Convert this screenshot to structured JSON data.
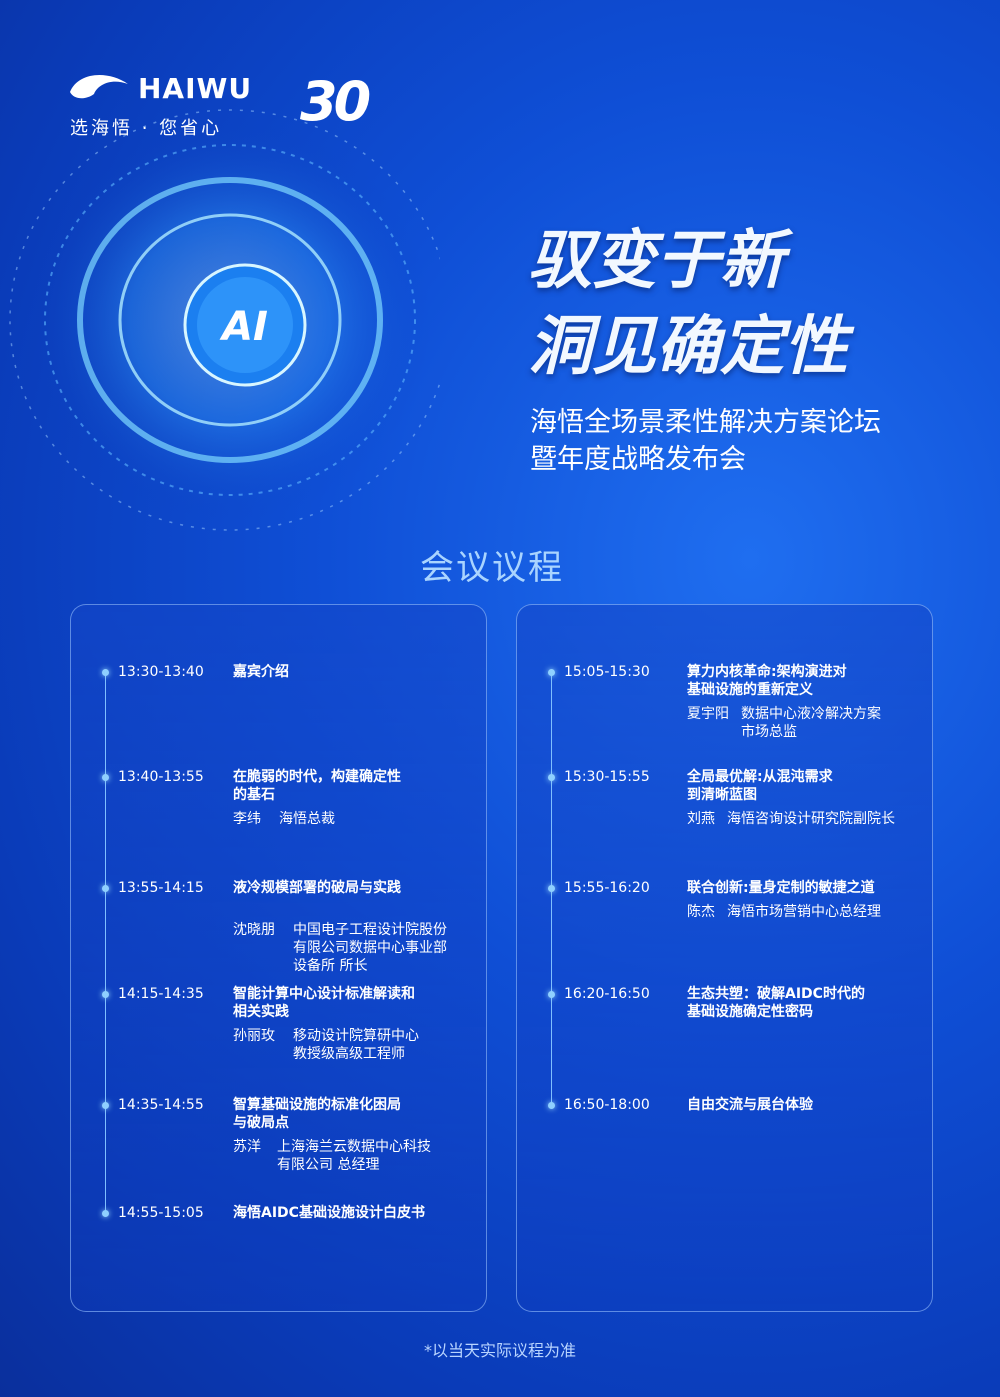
{
  "header": {
    "brand": "HAIWU",
    "slogan": "选海悟 · 您省心",
    "anniversary": "30"
  },
  "hero": {
    "badge": "AI",
    "title_lines": [
      "驭变于新",
      "洞见确定性"
    ],
    "subtitle_lines": [
      "海悟全场景柔性解决方案论坛",
      "暨年度战略发布会"
    ]
  },
  "agenda": {
    "title": "会议议程",
    "columns": [
      {
        "items": [
          {
            "time": "13:30-13:40",
            "title": [
              "嘉宾介绍"
            ]
          },
          {
            "time": "13:40-13:55",
            "title": [
              "在脆弱的时代，构建确定性",
              "的基石"
            ],
            "speaker": {
              "name": "李纬",
              "role": [
                "海悟总裁"
              ]
            }
          },
          {
            "time": "13:55-14:15",
            "title": [
              "液冷规模部署的破局与实践"
            ],
            "speaker": {
              "name": "沈晓朋",
              "role": [
                "中国电子工程设计院股份",
                "有限公司数据中心事业部",
                "设备所 所长"
              ]
            }
          },
          {
            "time": "14:15-14:35",
            "title": [
              "智能计算中心设计标准解读和",
              "相关实践"
            ],
            "speaker": {
              "name": "孙丽玫",
              "role": [
                "移动设计院算研中心",
                "教授级高级工程师"
              ]
            }
          },
          {
            "time": "14:35-14:55",
            "title": [
              "智算基础设施的标准化困局",
              "与破局点"
            ],
            "speaker": {
              "name": "苏洋",
              "role": [
                "上海海兰云数据中心科技",
                "有限公司 总经理"
              ]
            }
          },
          {
            "time": "14:55-15:05",
            "title": [
              "海悟AIDC基础设施设计白皮书"
            ]
          }
        ]
      },
      {
        "items": [
          {
            "time": "15:05-15:30",
            "title": [
              "算力内核革命:架构演进对",
              "基础设施的重新定义"
            ],
            "speaker": {
              "name": "夏宇阳",
              "role": [
                "数据中心液冷解决方案",
                "市场总监"
              ]
            }
          },
          {
            "time": "15:30-15:55",
            "title": [
              "全局最优解:从混沌需求",
              "到清晰蓝图"
            ],
            "speaker": {
              "name": "刘燕",
              "role": [
                "海悟咨询设计研究院副院长"
              ]
            }
          },
          {
            "time": "15:55-16:20",
            "title": [
              "联合创新:量身定制的敏捷之道"
            ],
            "speaker": {
              "name": "陈杰",
              "role": [
                "海悟市场营销中心总经理"
              ]
            }
          },
          {
            "time": "16:20-16:50",
            "title": [
              "生态共塑：破解AIDC时代的",
              "基础设施确定性密码"
            ]
          },
          {
            "time": "16:50-18:00",
            "title": [
              "自由交流与展台体验"
            ]
          }
        ]
      }
    ]
  },
  "footnote": "*以当天实际议程为准"
}
